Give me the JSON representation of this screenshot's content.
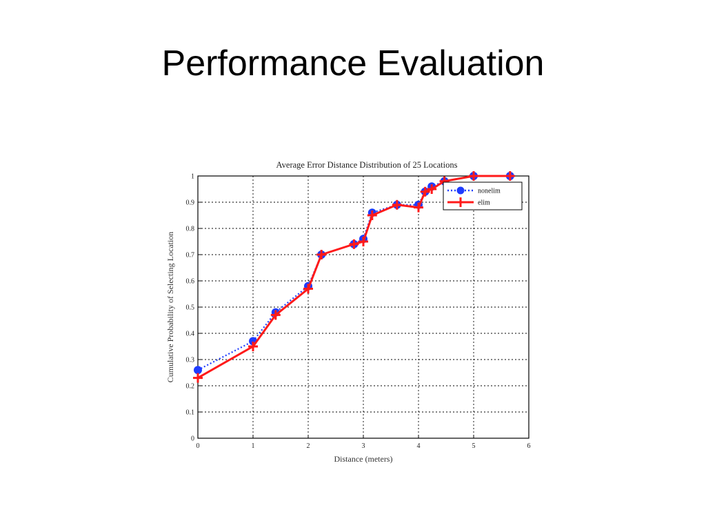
{
  "slide": {
    "title": "Performance Evaluation"
  },
  "chart_data": {
    "type": "line",
    "title": "Average Error Distance Distribution of 25 Locations",
    "xlabel": "Distance (meters)",
    "ylabel": "Cumulative Probability of Selecting Location",
    "xlim": [
      0,
      6
    ],
    "ylim": [
      0,
      1
    ],
    "xticks": [
      "0",
      "1",
      "2",
      "3",
      "4",
      "5",
      "6"
    ],
    "yticks": [
      "0",
      "0.1",
      "0.2",
      "0.3",
      "0.4",
      "0.5",
      "0.6",
      "0.7",
      "0.8",
      "0.9",
      "1"
    ],
    "grid": true,
    "legend_position": "top-right",
    "series": [
      {
        "name": "nonelim",
        "color": "#1f3cff",
        "line_style": "dotted",
        "marker": "circle",
        "x": [
          0,
          1,
          1.41,
          2,
          2.24,
          2.83,
          3,
          3.16,
          3.61,
          4,
          4.12,
          4.24,
          4.47,
          5,
          5.66
        ],
        "y": [
          0.26,
          0.37,
          0.48,
          0.58,
          0.7,
          0.74,
          0.76,
          0.86,
          0.89,
          0.89,
          0.94,
          0.96,
          0.98,
          1.0,
          1.0
        ]
      },
      {
        "name": "elim",
        "color": "#ff1a1a",
        "line_style": "solid",
        "marker": "plus",
        "x": [
          0,
          1,
          1.41,
          2,
          2.24,
          2.83,
          3,
          3.16,
          3.61,
          4,
          4.12,
          4.24,
          4.47,
          5,
          5.66
        ],
        "y": [
          0.23,
          0.35,
          0.47,
          0.57,
          0.7,
          0.74,
          0.75,
          0.85,
          0.89,
          0.88,
          0.94,
          0.95,
          0.98,
          1.0,
          1.0
        ]
      }
    ]
  }
}
